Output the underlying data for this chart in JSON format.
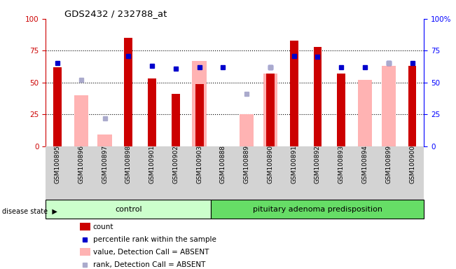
{
  "title": "GDS2432 / 232788_at",
  "samples": [
    "GSM100895",
    "GSM100896",
    "GSM100897",
    "GSM100898",
    "GSM100901",
    "GSM100902",
    "GSM100903",
    "GSM100888",
    "GSM100889",
    "GSM100890",
    "GSM100891",
    "GSM100892",
    "GSM100893",
    "GSM100894",
    "GSM100899",
    "GSM100900"
  ],
  "count": [
    62,
    0,
    0,
    85,
    53,
    41,
    49,
    0,
    0,
    57,
    83,
    78,
    57,
    0,
    0,
    63
  ],
  "percentile_rank": [
    65,
    0,
    0,
    71,
    63,
    61,
    62,
    62,
    0,
    62,
    71,
    70,
    62,
    62,
    65,
    65
  ],
  "value_absent": [
    0,
    40,
    9,
    0,
    0,
    0,
    67,
    0,
    25,
    57,
    0,
    0,
    0,
    52,
    63,
    0
  ],
  "rank_absent": [
    0,
    52,
    22,
    0,
    0,
    0,
    0,
    0,
    41,
    62,
    0,
    0,
    0,
    0,
    65,
    0
  ],
  "has_count": [
    true,
    false,
    false,
    true,
    true,
    true,
    true,
    false,
    false,
    true,
    true,
    true,
    true,
    false,
    false,
    true
  ],
  "has_percentile": [
    true,
    false,
    false,
    true,
    true,
    true,
    true,
    true,
    false,
    true,
    true,
    true,
    true,
    true,
    true,
    true
  ],
  "has_value_absent": [
    false,
    true,
    true,
    false,
    false,
    false,
    true,
    false,
    true,
    true,
    false,
    false,
    false,
    true,
    true,
    false
  ],
  "has_rank_absent": [
    false,
    true,
    true,
    false,
    false,
    false,
    false,
    false,
    true,
    true,
    false,
    false,
    false,
    false,
    true,
    false
  ],
  "n_control": 7,
  "n_pituitary": 9,
  "ylim": [
    0,
    100
  ],
  "bar_color_count": "#cc0000",
  "bar_color_value_absent": "#ffb3b3",
  "square_color_percentile": "#0000cc",
  "square_color_rank_absent": "#aaaacc",
  "control_group_color": "#ccffcc",
  "pituitary_group_color": "#66dd66",
  "background_color": "#ffffff",
  "xticklabel_bg": "#d3d3d3"
}
